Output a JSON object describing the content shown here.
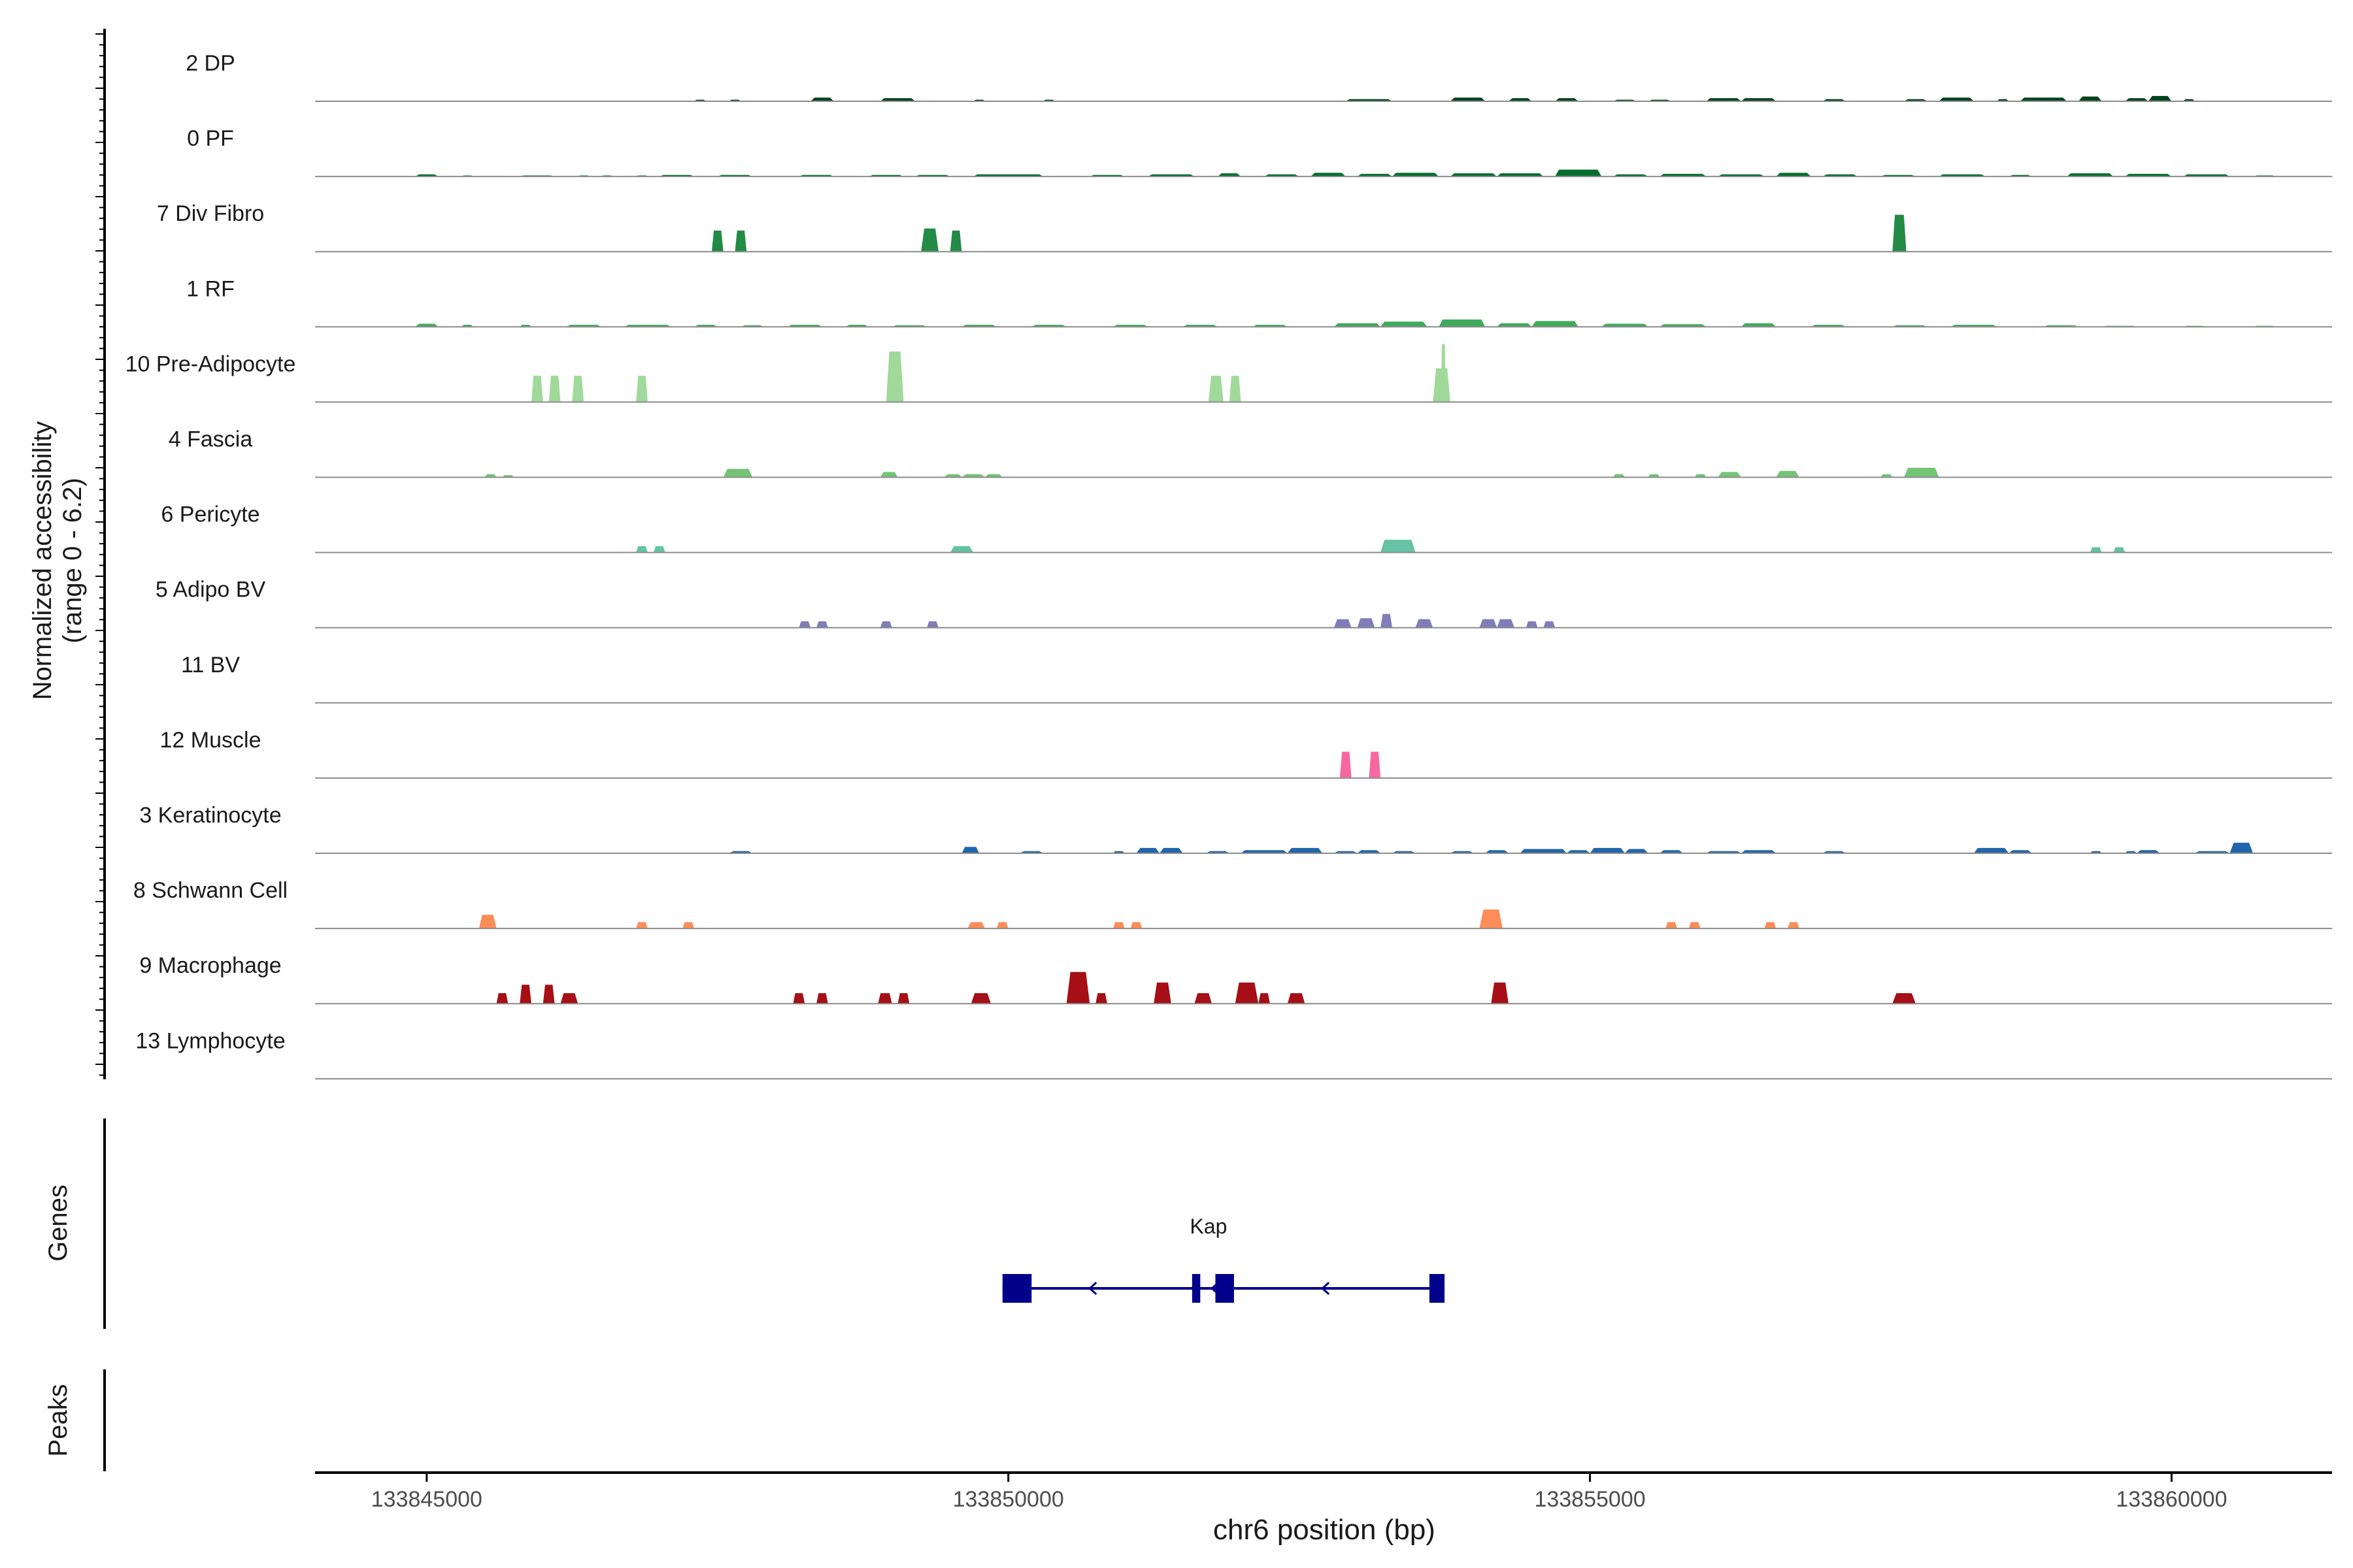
{
  "chart_data": {
    "type": "area",
    "x_unit_label": "chr6 position (bp)",
    "y_label_line1": "Normalized accessibility",
    "y_label_line2": "(range 0 - 6.2)",
    "y_range": [
      0,
      6.2
    ],
    "x_range": [
      133844040,
      133861380
    ],
    "x_ticks": [
      133845000,
      133850000,
      133855000,
      133860000
    ],
    "x_tick_labels": [
      "133845000",
      "133850000",
      "133855000",
      "133860000"
    ],
    "genes_label": "Genes",
    "peaks_label": "Peaks",
    "tracks": [
      {
        "name": "2 DP",
        "color": "#00441b",
        "regions": [
          [
            133847300,
            133847400,
            0.15
          ],
          [
            133847600,
            133847700,
            0.15
          ],
          [
            133848300,
            133848500,
            0.35
          ],
          [
            133848900,
            133849200,
            0.3
          ],
          [
            133849700,
            133849800,
            0.15
          ],
          [
            133850300,
            133850400,
            0.15
          ],
          [
            133852900,
            133853300,
            0.2
          ],
          [
            133853800,
            133854100,
            0.35
          ],
          [
            133854300,
            133854500,
            0.3
          ],
          [
            133854700,
            133854900,
            0.3
          ],
          [
            133855200,
            133855400,
            0.15
          ],
          [
            133855500,
            133855700,
            0.15
          ],
          [
            133856000,
            133856300,
            0.3
          ],
          [
            133856300,
            133856600,
            0.3
          ],
          [
            133857000,
            133857200,
            0.2
          ],
          [
            133857700,
            133857900,
            0.2
          ],
          [
            133858000,
            133858300,
            0.35
          ],
          [
            133858500,
            133858600,
            0.2
          ],
          [
            133858700,
            133859100,
            0.35
          ],
          [
            133859200,
            133859400,
            0.45
          ],
          [
            133859600,
            133859800,
            0.3
          ],
          [
            133859800,
            133860000,
            0.5
          ],
          [
            133860100,
            133860200,
            0.2
          ]
        ]
      },
      {
        "name": "0 PF",
        "color": "#006d2c",
        "regions": [
          [
            133844900,
            133845100,
            0.2
          ],
          [
            133845300,
            133845400,
            0.1
          ],
          [
            133845800,
            133846100,
            0.1
          ],
          [
            133846300,
            133846400,
            0.1
          ],
          [
            133846500,
            133846600,
            0.1
          ],
          [
            133846800,
            133846900,
            0.1
          ],
          [
            133847000,
            133847300,
            0.15
          ],
          [
            133847500,
            133847800,
            0.15
          ],
          [
            133848200,
            133848500,
            0.15
          ],
          [
            133848800,
            133849100,
            0.15
          ],
          [
            133849200,
            133849500,
            0.15
          ],
          [
            133849700,
            133850300,
            0.2
          ],
          [
            133850700,
            133851000,
            0.15
          ],
          [
            133851200,
            133851600,
            0.2
          ],
          [
            133851800,
            133852000,
            0.3
          ],
          [
            133852200,
            133852500,
            0.2
          ],
          [
            133852600,
            133852900,
            0.35
          ],
          [
            133853000,
            133853300,
            0.25
          ],
          [
            133853300,
            133853700,
            0.35
          ],
          [
            133853800,
            133854200,
            0.3
          ],
          [
            133854200,
            133854600,
            0.3
          ],
          [
            133854700,
            133855100,
            0.65
          ],
          [
            133855200,
            133855500,
            0.2
          ],
          [
            133855600,
            133856000,
            0.25
          ],
          [
            133856100,
            133856500,
            0.2
          ],
          [
            133856600,
            133856900,
            0.35
          ],
          [
            133857000,
            133857300,
            0.2
          ],
          [
            133857500,
            133857800,
            0.15
          ],
          [
            133858000,
            133858400,
            0.2
          ],
          [
            133858600,
            133858800,
            0.15
          ],
          [
            133859100,
            133859500,
            0.3
          ],
          [
            133859600,
            133860000,
            0.25
          ],
          [
            133860100,
            133860500,
            0.2
          ],
          [
            133860700,
            133860900,
            0.1
          ]
        ]
      },
      {
        "name": "7 Div Fibro",
        "color": "#238b45",
        "regions": [
          [
            133847450,
            133847550,
            2.0
          ],
          [
            133847650,
            133847750,
            2.0
          ],
          [
            133849250,
            133849400,
            2.2
          ],
          [
            133849500,
            133849600,
            2.0
          ],
          [
            133857600,
            133857720,
            3.5
          ]
        ]
      },
      {
        "name": "1 RF",
        "color": "#41ab5d",
        "regions": [
          [
            133844900,
            133845100,
            0.3
          ],
          [
            133845300,
            133845400,
            0.2
          ],
          [
            133845800,
            133845900,
            0.2
          ],
          [
            133846200,
            133846500,
            0.2
          ],
          [
            133846700,
            133847100,
            0.2
          ],
          [
            133847300,
            133847500,
            0.2
          ],
          [
            133847700,
            133847900,
            0.15
          ],
          [
            133848100,
            133848400,
            0.2
          ],
          [
            133848600,
            133848800,
            0.2
          ],
          [
            133849000,
            133849300,
            0.15
          ],
          [
            133849600,
            133849900,
            0.2
          ],
          [
            133850200,
            133850500,
            0.2
          ],
          [
            133850900,
            133851200,
            0.2
          ],
          [
            133851500,
            133851800,
            0.2
          ],
          [
            133852100,
            133852400,
            0.2
          ],
          [
            133852800,
            133853200,
            0.35
          ],
          [
            133853200,
            133853600,
            0.5
          ],
          [
            133853700,
            133854100,
            0.7
          ],
          [
            133854200,
            133854500,
            0.35
          ],
          [
            133854500,
            133854900,
            0.55
          ],
          [
            133855100,
            133855500,
            0.3
          ],
          [
            133855600,
            133856000,
            0.25
          ],
          [
            133856300,
            133856600,
            0.35
          ],
          [
            133856900,
            133857200,
            0.2
          ],
          [
            133857600,
            133857900,
            0.15
          ],
          [
            133858100,
            133858500,
            0.2
          ],
          [
            133858900,
            133859200,
            0.15
          ],
          [
            133859400,
            133859700,
            0.1
          ],
          [
            133860100,
            133860300,
            0.1
          ],
          [
            133860700,
            133860900,
            0.1
          ]
        ]
      },
      {
        "name": "10 Pre-Adipocyte",
        "color": "#a1d99b",
        "regions": [
          [
            133845900,
            133846000,
            2.5
          ],
          [
            133846050,
            133846150,
            2.5
          ],
          [
            133846250,
            133846350,
            2.5
          ],
          [
            133846800,
            133846900,
            2.5
          ],
          [
            133848950,
            133849100,
            4.8
          ],
          [
            133851720,
            133851850,
            2.5
          ],
          [
            133851900,
            133852000,
            2.5
          ],
          [
            133853650,
            133853800,
            3.2
          ],
          [
            133853720,
            133853760,
            5.5
          ]
        ]
      },
      {
        "name": "4 Fascia",
        "color": "#74c476",
        "regions": [
          [
            133845500,
            133845600,
            0.3
          ],
          [
            133845650,
            133845750,
            0.2
          ],
          [
            133847550,
            133847800,
            0.8
          ],
          [
            133848900,
            133849050,
            0.5
          ],
          [
            133849450,
            133849600,
            0.3
          ],
          [
            133849600,
            133849800,
            0.3
          ],
          [
            133849800,
            133849950,
            0.3
          ],
          [
            133855200,
            133855300,
            0.3
          ],
          [
            133855500,
            133855600,
            0.3
          ],
          [
            133855900,
            133856000,
            0.3
          ],
          [
            133856100,
            133856300,
            0.5
          ],
          [
            133856600,
            133856800,
            0.6
          ],
          [
            133857500,
            133857600,
            0.3
          ],
          [
            133857700,
            133858000,
            0.9
          ]
        ]
      },
      {
        "name": "6 Pericyte",
        "color": "#66c2a4",
        "regions": [
          [
            133846800,
            133846900,
            0.6
          ],
          [
            133846950,
            133847050,
            0.6
          ],
          [
            133849500,
            133849700,
            0.6
          ],
          [
            133853200,
            133853500,
            1.2
          ],
          [
            133859300,
            133859400,
            0.5
          ],
          [
            133859500,
            133859600,
            0.5
          ]
        ]
      },
      {
        "name": "5 Adipo BV",
        "color": "#807dba",
        "regions": [
          [
            133848200,
            133848300,
            0.6
          ],
          [
            133848350,
            133848450,
            0.6
          ],
          [
            133848900,
            133849000,
            0.6
          ],
          [
            133849300,
            133849400,
            0.6
          ],
          [
            133852800,
            133852950,
            0.8
          ],
          [
            133853000,
            133853150,
            0.9
          ],
          [
            133853200,
            133853300,
            1.3
          ],
          [
            133853500,
            133853650,
            0.8
          ],
          [
            133854050,
            133854200,
            0.8
          ],
          [
            133854200,
            133854350,
            0.8
          ],
          [
            133854450,
            133854550,
            0.6
          ],
          [
            133854600,
            133854700,
            0.6
          ]
        ]
      },
      {
        "name": "11 BV",
        "color": "#6a51a3",
        "regions": []
      },
      {
        "name": "12 Muscle",
        "color": "#f768a1",
        "regions": [
          [
            133852850,
            133852950,
            2.5
          ],
          [
            133853100,
            133853200,
            2.5
          ]
        ]
      },
      {
        "name": "3 Keratinocyte",
        "color": "#2166ac",
        "regions": [
          [
            133847600,
            133847800,
            0.2
          ],
          [
            133849600,
            133849750,
            0.6
          ],
          [
            133850100,
            133850300,
            0.2
          ],
          [
            133850900,
            133851000,
            0.2
          ],
          [
            133851100,
            133851300,
            0.5
          ],
          [
            133851300,
            133851500,
            0.5
          ],
          [
            133851700,
            133851900,
            0.2
          ],
          [
            133852000,
            133852400,
            0.3
          ],
          [
            133852400,
            133852700,
            0.5
          ],
          [
            133852800,
            133853000,
            0.2
          ],
          [
            133853000,
            133853200,
            0.3
          ],
          [
            133853300,
            133853500,
            0.2
          ],
          [
            133853800,
            133854000,
            0.2
          ],
          [
            133854100,
            133854300,
            0.3
          ],
          [
            133854400,
            133854800,
            0.4
          ],
          [
            133854800,
            133855000,
            0.3
          ],
          [
            133855000,
            133855300,
            0.5
          ],
          [
            133855300,
            133855500,
            0.4
          ],
          [
            133855600,
            133855800,
            0.3
          ],
          [
            133856000,
            133856300,
            0.2
          ],
          [
            133856300,
            133856600,
            0.3
          ],
          [
            133857000,
            133857200,
            0.2
          ],
          [
            133858300,
            133858600,
            0.5
          ],
          [
            133858600,
            133858800,
            0.3
          ],
          [
            133859300,
            133859400,
            0.2
          ],
          [
            133859600,
            133859700,
            0.2
          ],
          [
            133859700,
            133859900,
            0.3
          ],
          [
            133860200,
            133860500,
            0.2
          ],
          [
            133860500,
            133860700,
            1.0
          ]
        ]
      },
      {
        "name": "8 Schwann Cell",
        "color": "#fc8d59",
        "regions": [
          [
            133845450,
            133845600,
            1.3
          ],
          [
            133846800,
            133846900,
            0.6
          ],
          [
            133847200,
            133847300,
            0.6
          ],
          [
            133849650,
            133849800,
            0.6
          ],
          [
            133849900,
            133850000,
            0.6
          ],
          [
            133850900,
            133851000,
            0.6
          ],
          [
            133851050,
            133851150,
            0.6
          ],
          [
            133854050,
            133854250,
            1.8
          ],
          [
            133855650,
            133855750,
            0.6
          ],
          [
            133855850,
            133855950,
            0.6
          ],
          [
            133856500,
            133856600,
            0.6
          ],
          [
            133856700,
            133856800,
            0.6
          ]
        ]
      },
      {
        "name": "9 Macrophage",
        "color": "#a50f15",
        "regions": [
          [
            133845600,
            133845700,
            1.0
          ],
          [
            133845800,
            133845900,
            1.8
          ],
          [
            133846000,
            133846100,
            1.8
          ],
          [
            133846150,
            133846300,
            1.0
          ],
          [
            133848150,
            133848250,
            1.0
          ],
          [
            133848350,
            133848450,
            1.0
          ],
          [
            133848880,
            133849000,
            1.0
          ],
          [
            133849050,
            133849150,
            1.0
          ],
          [
            133849680,
            133849850,
            1.0
          ],
          [
            133850500,
            133850700,
            3.0
          ],
          [
            133850750,
            133850850,
            1.0
          ],
          [
            133851250,
            133851400,
            2.0
          ],
          [
            133851600,
            133851750,
            1.0
          ],
          [
            133851950,
            133852150,
            2.0
          ],
          [
            133852150,
            133852250,
            1.0
          ],
          [
            133852400,
            133852550,
            1.0
          ],
          [
            133854150,
            133854300,
            2.0
          ],
          [
            133857600,
            133857800,
            1.0
          ]
        ]
      },
      {
        "name": "13 Lymphocyte",
        "color": "#a50f15",
        "regions": []
      }
    ],
    "gene": {
      "name": "Kap",
      "start": 133849950,
      "end": 133853750,
      "strand": "-",
      "exons": [
        [
          133849950,
          133850200
        ],
        [
          133851580,
          133851650
        ],
        [
          133851780,
          133851940
        ],
        [
          133853620,
          133853750
        ]
      ],
      "arrows": [
        133850700,
        133851750,
        133852700
      ]
    }
  }
}
